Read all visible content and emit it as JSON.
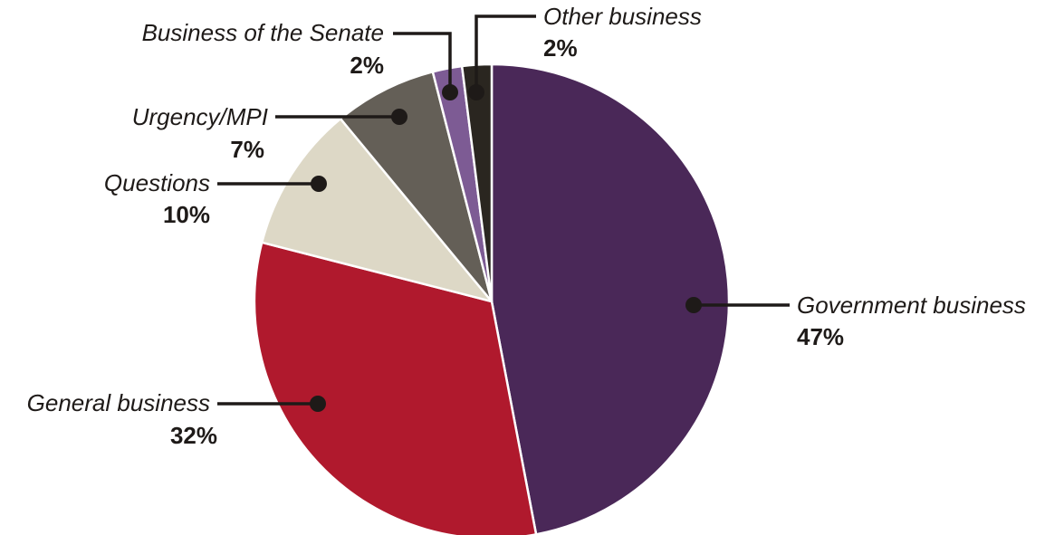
{
  "chart_data": {
    "type": "pie",
    "title": "",
    "start_angle_deg": 0,
    "direction": "clockwise",
    "slices": [
      {
        "label": "Government business",
        "value": 47,
        "value_label": "47%",
        "color": "#4a2858"
      },
      {
        "label": "General business",
        "value": 32,
        "value_label": "32%",
        "color": "#b0192d"
      },
      {
        "label": "Questions",
        "value": 10,
        "value_label": "10%",
        "color": "#ddd8c6"
      },
      {
        "label": "Urgency/MPI",
        "value": 7,
        "value_label": "7%",
        "color": "#645f57"
      },
      {
        "label": "Business of the Senate",
        "value": 2,
        "value_label": "2%",
        "color": "#7d5b94"
      },
      {
        "label": "Other business",
        "value": 2,
        "value_label": "2%",
        "color": "#2a2620"
      }
    ],
    "legend": "none (callout labels with leader lines)"
  }
}
